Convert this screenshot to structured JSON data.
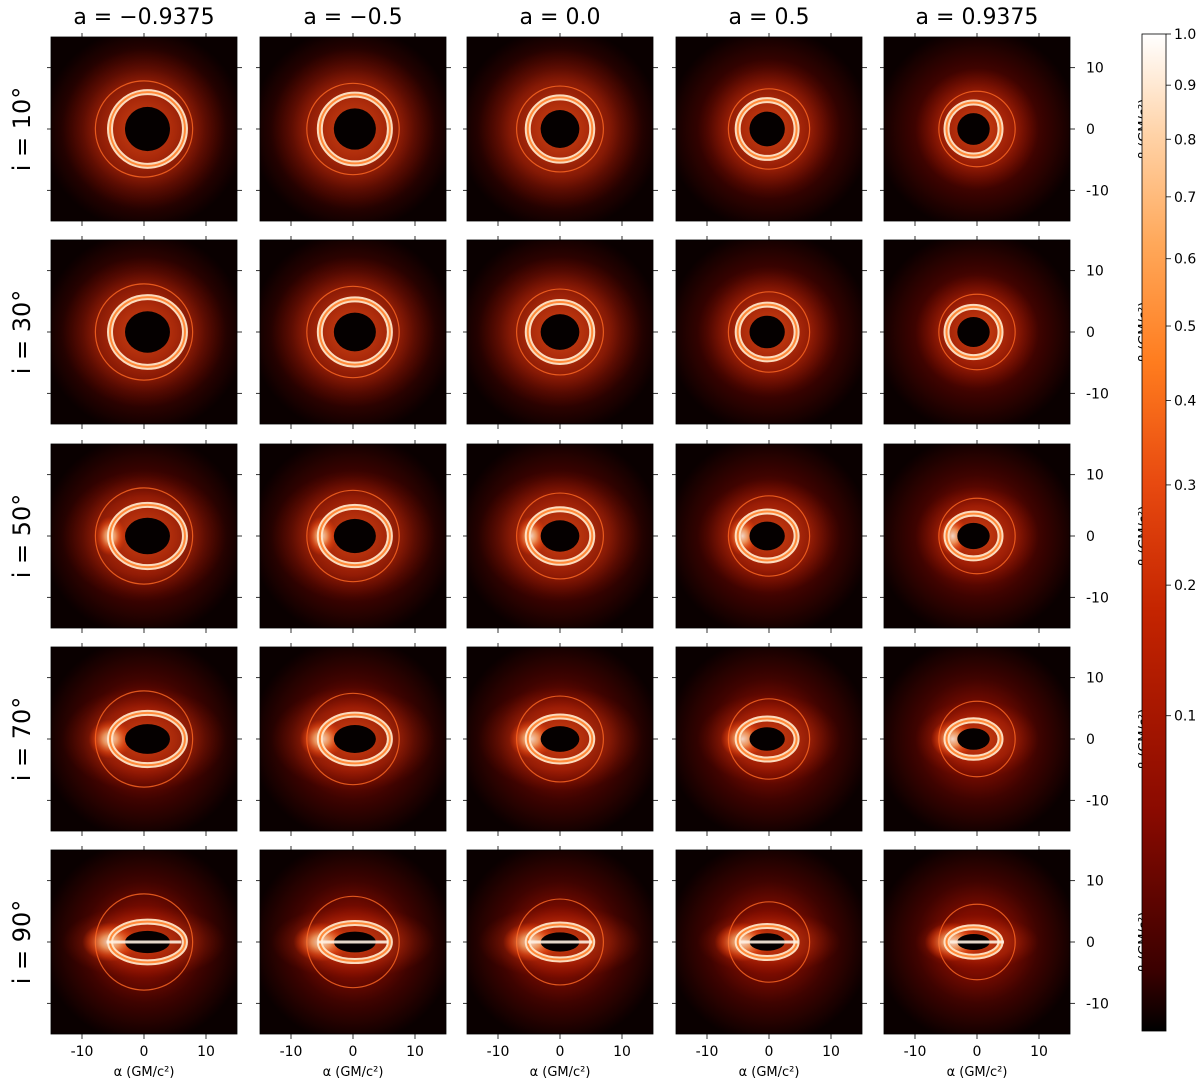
{
  "chart_data": {
    "type": "heatmap",
    "title": "",
    "column_titles": [
      "a = −0.9375",
      "a = −0.5",
      "a = 0.0",
      "a = 0.5",
      "a = 0.9375"
    ],
    "spins": [
      -0.9375,
      -0.5,
      0.0,
      0.5,
      0.9375
    ],
    "row_titles": [
      "i = 10°",
      "i = 30°",
      "i = 50°",
      "i = 70°",
      "i = 90°"
    ],
    "inclinations_deg": [
      10,
      30,
      50,
      70,
      90
    ],
    "xlabel": "α (GM/c²)",
    "ylabel": "β (GM/c²)",
    "xlim": [
      -15,
      15
    ],
    "ylim": [
      -15,
      15
    ],
    "x_tick_labels": [
      "-10",
      "0",
      "10"
    ],
    "x_ticks": [
      -10,
      0,
      10
    ],
    "y_tick_labels": [
      "10",
      "0",
      "-10"
    ],
    "y_ticks": [
      10,
      0,
      -10
    ],
    "colorbar": {
      "range": [
        0.0,
        1.0
      ],
      "scale": "power",
      "tick_labels": [
        "1.0",
        "0.9",
        "0.8",
        "0.7",
        "0.6",
        "0.5",
        "0.4",
        "0.3",
        "0.2",
        "0.1"
      ],
      "ticks": [
        1.0,
        0.9,
        0.8,
        0.7,
        0.6,
        0.5,
        0.4,
        0.3,
        0.2,
        0.1
      ],
      "colormap": [
        "#000000",
        "#3a0000",
        "#8a0a00",
        "#c42400",
        "#e84a10",
        "#ff7c1e",
        "#ffa85a",
        "#ffd3a8",
        "#ffffff"
      ]
    },
    "panels_description": "Normalized intensity images of black hole accretion flow; ring brightness and asymmetry vary with spin (columns) and inclination (rows)."
  }
}
